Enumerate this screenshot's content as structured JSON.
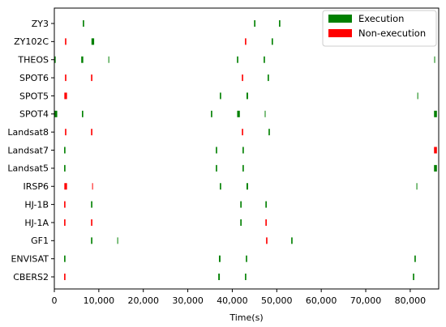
{
  "chart_data": {
    "type": "bar",
    "xlabel": "Time(s)",
    "xlim": [
      0,
      86400
    ],
    "xticks": [
      0,
      10000,
      20000,
      30000,
      40000,
      50000,
      60000,
      70000,
      80000
    ],
    "xtick_labels": [
      "0",
      "10,000",
      "20,000",
      "30,000",
      "40,000",
      "50,000",
      "60,000",
      "70,000",
      "80,000"
    ],
    "grid": false,
    "legend": "top-right",
    "series": [
      {
        "name": "Execution",
        "color": "#008000"
      },
      {
        "name": "Non-execution",
        "color": "#ff0000"
      }
    ],
    "rows": [
      {
        "label": "ZY3",
        "execution": [
          [
            6400,
            300
          ],
          [
            44900,
            300
          ],
          [
            50500,
            300
          ]
        ],
        "non_execution": []
      },
      {
        "label": "ZY102C",
        "execution": [
          [
            8350,
            600
          ],
          [
            48850,
            300
          ]
        ],
        "non_execution": [
          [
            2400,
            300
          ],
          [
            42850,
            300
          ]
        ]
      },
      {
        "label": "THEOS",
        "execution": [
          [
            0,
            300
          ],
          [
            6050,
            450
          ],
          [
            12150,
            150
          ],
          [
            41050,
            300
          ],
          [
            47050,
            300
          ],
          [
            85400,
            150
          ]
        ],
        "non_execution": []
      },
      {
        "label": "SPOT6",
        "execution": [
          [
            47950,
            300
          ]
        ],
        "non_execution": [
          [
            2400,
            300
          ],
          [
            8250,
            300
          ],
          [
            42150,
            300
          ]
        ]
      },
      {
        "label": "SPOT5",
        "execution": [
          [
            37200,
            300
          ],
          [
            43200,
            350
          ],
          [
            81600,
            150
          ]
        ],
        "non_execution": [
          [
            2250,
            600
          ]
        ]
      },
      {
        "label": "SPOT4",
        "execution": [
          [
            0,
            650
          ],
          [
            6200,
            300
          ],
          [
            35200,
            300
          ],
          [
            41100,
            600
          ],
          [
            47300,
            150
          ],
          [
            85350,
            650
          ]
        ],
        "non_execution": []
      },
      {
        "label": "Landsat8",
        "execution": [
          [
            48150,
            300
          ]
        ],
        "non_execution": [
          [
            2400,
            300
          ],
          [
            8250,
            300
          ],
          [
            42150,
            300
          ]
        ]
      },
      {
        "label": "Landsat7",
        "execution": [
          [
            2200,
            300
          ],
          [
            36300,
            300
          ],
          [
            42300,
            300
          ]
        ],
        "non_execution": [
          [
            85350,
            650
          ]
        ]
      },
      {
        "label": "Landsat5",
        "execution": [
          [
            2200,
            300
          ],
          [
            36300,
            300
          ],
          [
            42300,
            300
          ],
          [
            85350,
            650
          ]
        ],
        "non_execution": []
      },
      {
        "label": "IRSP6",
        "execution": [
          [
            37200,
            300
          ],
          [
            43200,
            350
          ],
          [
            81400,
            150
          ]
        ],
        "non_execution": [
          [
            2250,
            600
          ],
          [
            8500,
            150
          ]
        ]
      },
      {
        "label": "HJ-1B",
        "execution": [
          [
            8250,
            300
          ],
          [
            41800,
            300
          ],
          [
            47450,
            300
          ]
        ],
        "non_execution": [
          [
            2200,
            300
          ]
        ]
      },
      {
        "label": "HJ-1A",
        "execution": [
          [
            41800,
            300
          ]
        ],
        "non_execution": [
          [
            2200,
            300
          ],
          [
            8250,
            300
          ],
          [
            47450,
            300
          ]
        ]
      },
      {
        "label": "GF1",
        "execution": [
          [
            8250,
            300
          ],
          [
            14150,
            150
          ],
          [
            53250,
            300
          ]
        ],
        "non_execution": [
          [
            47600,
            300
          ]
        ]
      },
      {
        "label": "ENVISAT",
        "execution": [
          [
            2200,
            300
          ],
          [
            37000,
            350
          ],
          [
            43050,
            300
          ],
          [
            80950,
            300
          ]
        ],
        "non_execution": []
      },
      {
        "label": "CBERS2",
        "execution": [
          [
            36850,
            350
          ],
          [
            42850,
            300
          ],
          [
            80600,
            300
          ]
        ],
        "non_execution": [
          [
            2200,
            300
          ]
        ]
      }
    ]
  }
}
